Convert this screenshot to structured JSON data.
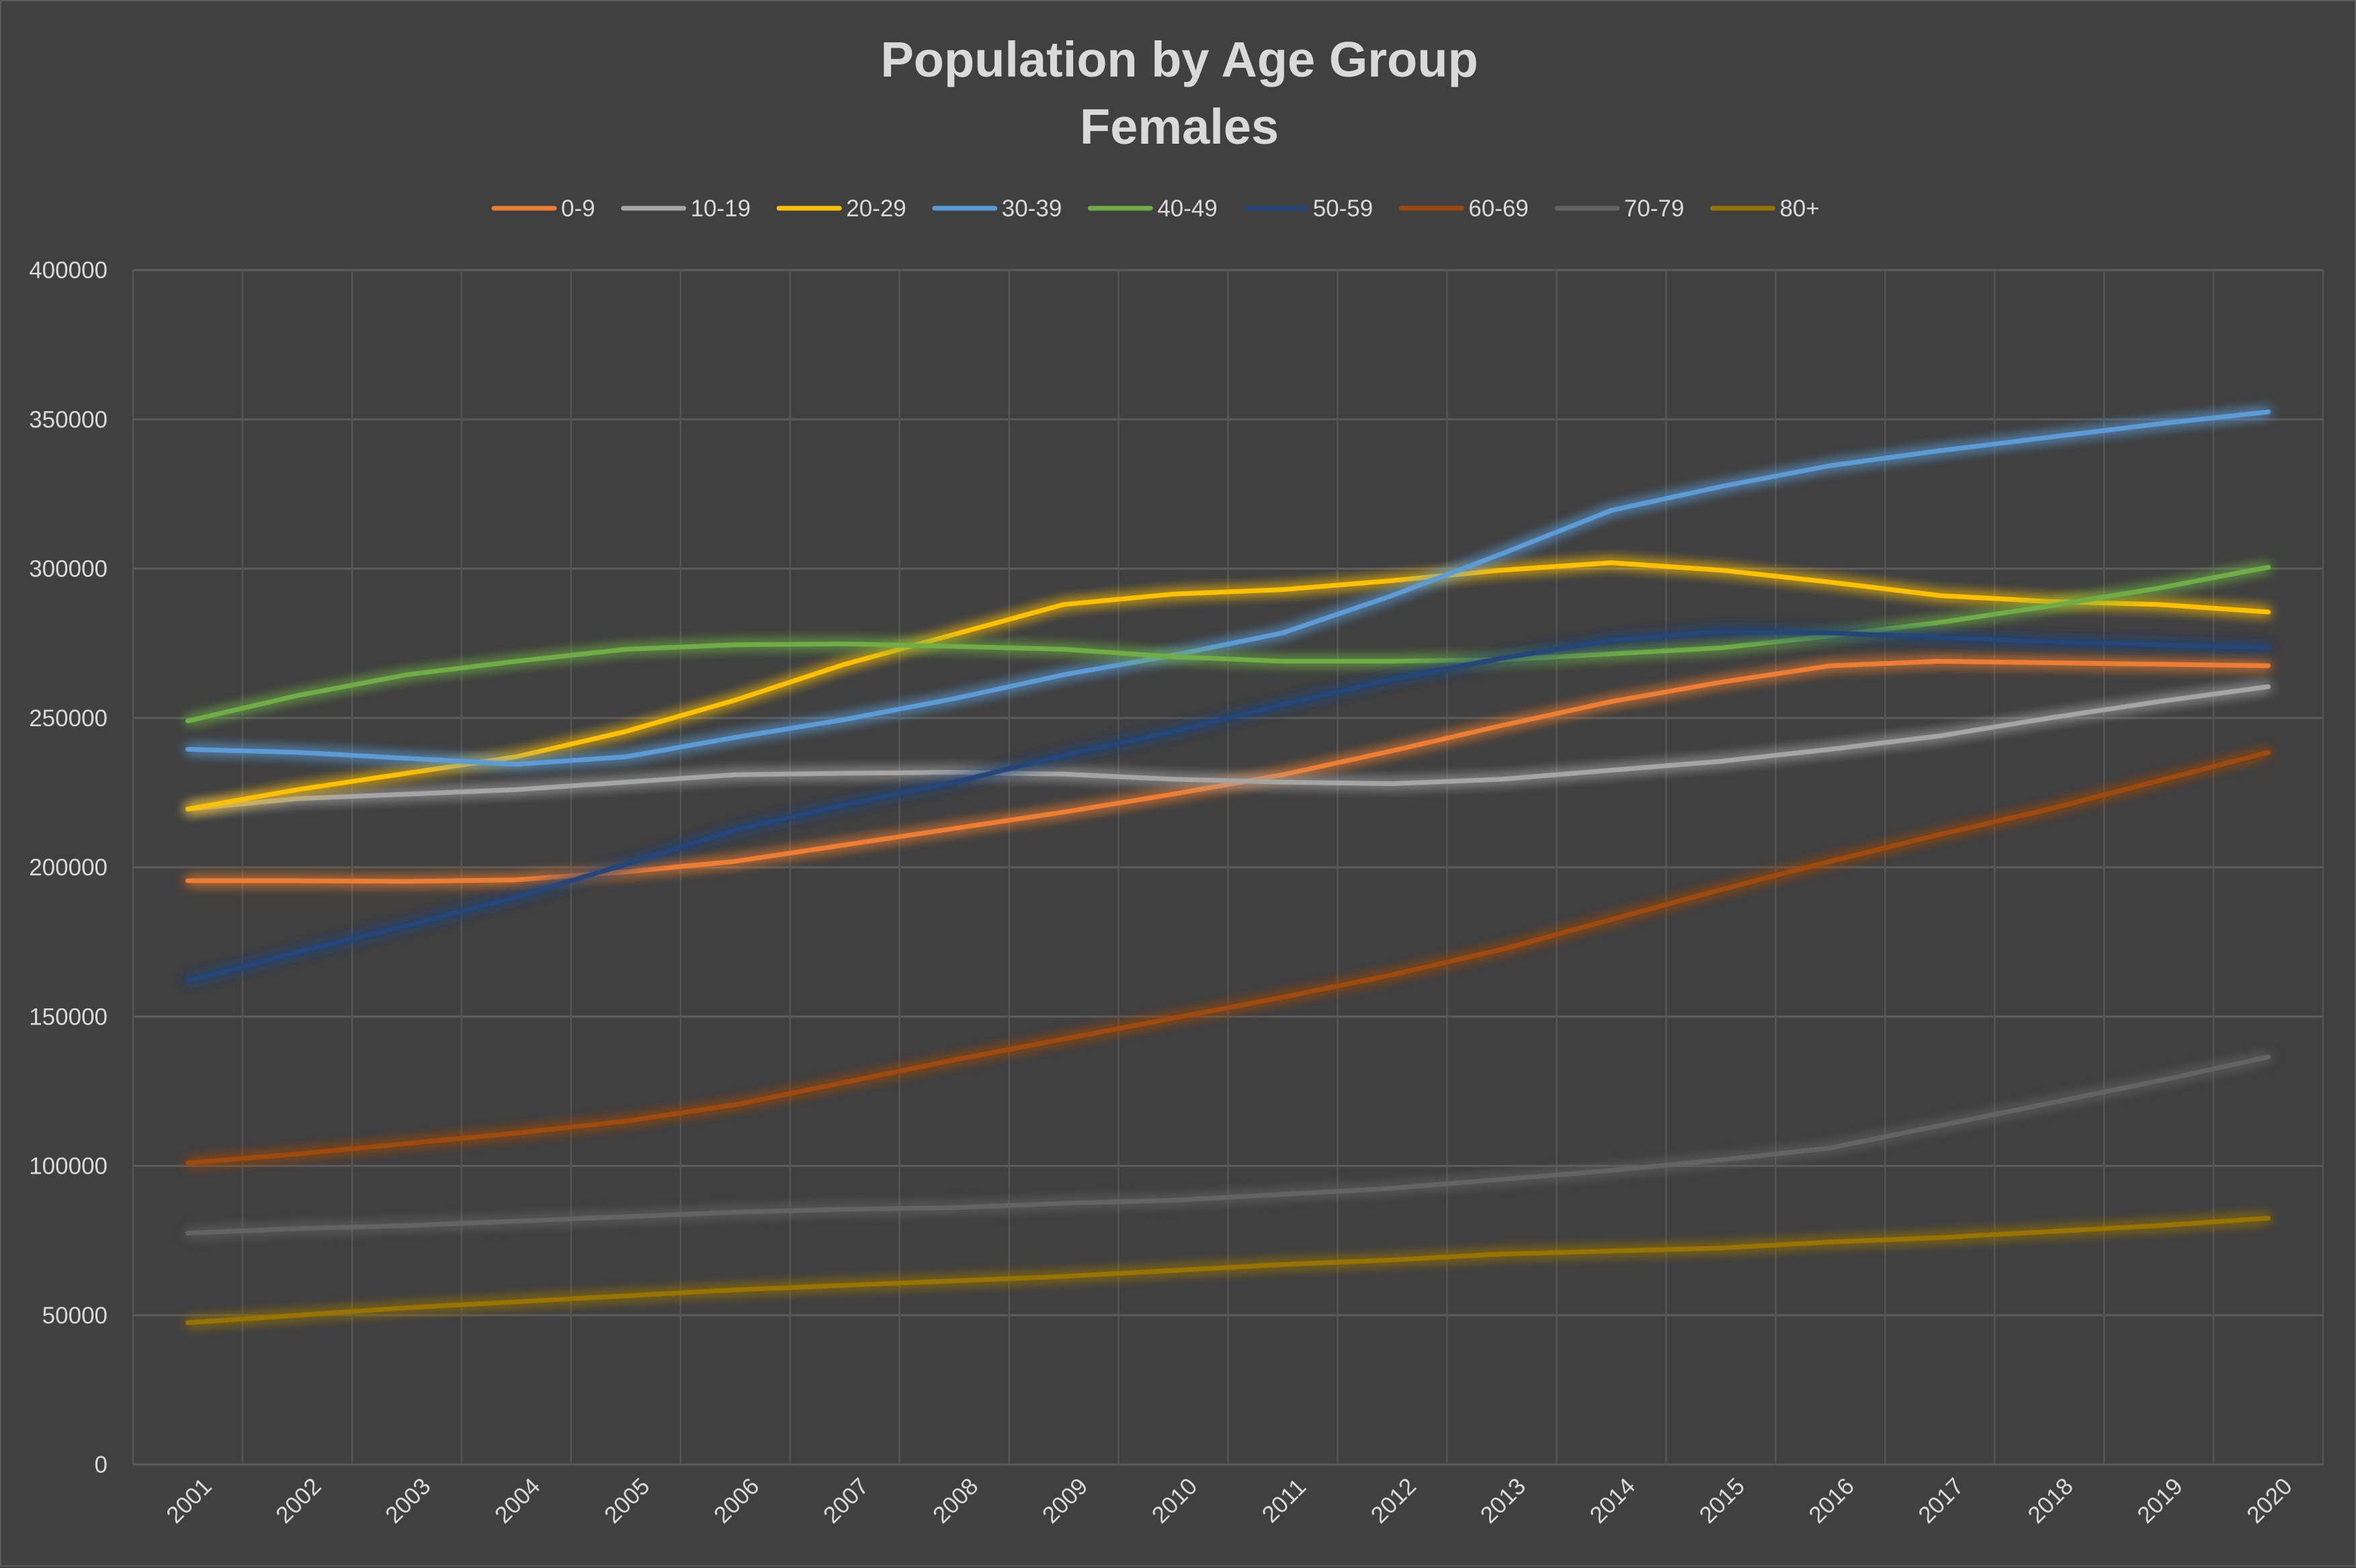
{
  "chart_data": {
    "type": "line",
    "title": "Population by Age Group",
    "subtitle": "Females",
    "xlabel": "",
    "ylabel": "",
    "ylim": [
      0,
      400000
    ],
    "y_ticks": [
      0,
      50000,
      100000,
      150000,
      200000,
      250000,
      300000,
      350000,
      400000
    ],
    "grid": true,
    "legend_position": "top",
    "x": [
      "2001",
      "2002",
      "2003",
      "2004",
      "2005",
      "2006",
      "2007",
      "2008",
      "2009",
      "2010",
      "2011",
      "2012",
      "2013",
      "2014",
      "2015",
      "2016",
      "2017",
      "2018",
      "2019",
      "2020"
    ],
    "series": [
      {
        "name": "0-9",
        "color": "#ED7D31",
        "values": [
          195500,
          195500,
          195300,
          195800,
          198500,
          202000,
          207500,
          213000,
          218500,
          224500,
          231000,
          239000,
          247500,
          255500,
          262000,
          267500,
          269000,
          268500,
          268000,
          267500
        ]
      },
      {
        "name": "10-19",
        "color": "#A5A5A5",
        "values": [
          219500,
          223000,
          224500,
          226000,
          228500,
          231000,
          231500,
          231800,
          231200,
          229500,
          228500,
          228000,
          229500,
          232500,
          235500,
          239500,
          244000,
          250000,
          255500,
          260500
        ]
      },
      {
        "name": "20-29",
        "color": "#FFC000",
        "values": [
          219500,
          226000,
          231500,
          237000,
          245500,
          256000,
          268000,
          278000,
          288000,
          291500,
          293000,
          296000,
          299500,
          302000,
          299500,
          295500,
          291000,
          289000,
          288000,
          285500
        ]
      },
      {
        "name": "30-39",
        "color": "#5B9BD5",
        "values": [
          239500,
          238500,
          236500,
          234500,
          237000,
          243500,
          249500,
          256500,
          264500,
          271000,
          278500,
          291000,
          305000,
          319500,
          327500,
          334500,
          339500,
          344000,
          348500,
          352500
        ]
      },
      {
        "name": "40-49",
        "color": "#70AD47",
        "values": [
          249000,
          257500,
          264500,
          269000,
          273000,
          274500,
          274800,
          274000,
          273000,
          270500,
          269000,
          269000,
          269500,
          271500,
          273500,
          277500,
          282000,
          287500,
          293500,
          300500
        ]
      },
      {
        "name": "50-59",
        "color": "#264478",
        "values": [
          162000,
          171500,
          180500,
          190000,
          201000,
          212500,
          221000,
          228500,
          237500,
          245500,
          254500,
          263000,
          270000,
          276000,
          279000,
          278500,
          277000,
          275500,
          274500,
          273500
        ]
      },
      {
        "name": "60-69",
        "color": "#9E480E",
        "values": [
          101000,
          104000,
          107500,
          111000,
          115000,
          120500,
          128000,
          135500,
          142500,
          149500,
          156500,
          164000,
          172500,
          182500,
          192500,
          202000,
          211000,
          219500,
          229000,
          238500
        ]
      },
      {
        "name": "70-79",
        "color": "#636363",
        "values": [
          77500,
          79000,
          80000,
          81500,
          83000,
          84500,
          85500,
          86000,
          87500,
          88500,
          90500,
          92500,
          95500,
          98500,
          102000,
          106000,
          113500,
          121000,
          128500,
          136500
        ]
      },
      {
        "name": "80+",
        "color": "#997300",
        "values": [
          47500,
          50000,
          52500,
          54500,
          56500,
          58500,
          60000,
          61500,
          63000,
          65000,
          67000,
          68500,
          70500,
          71500,
          72500,
          74500,
          76000,
          78000,
          80000,
          82500
        ]
      }
    ]
  }
}
